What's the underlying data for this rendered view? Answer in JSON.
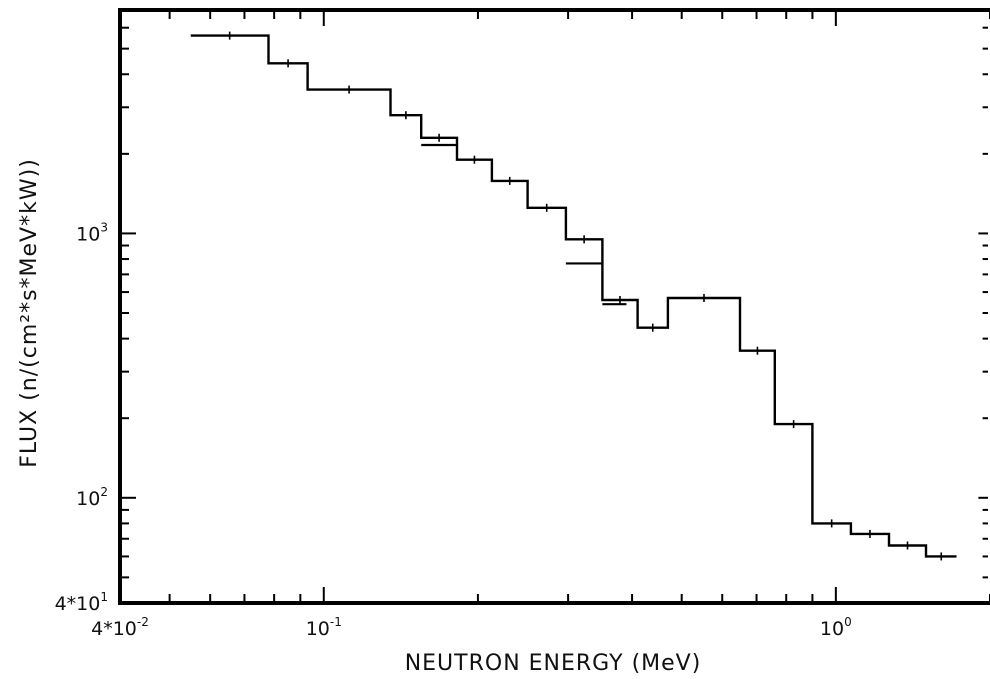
{
  "chart_data": {
    "type": "line",
    "title": "",
    "xlabel": "NEUTRON ENERGY (MeV)",
    "ylabel": "FLUX (n/(cm²*s*MeV*kW))",
    "xscale": "log",
    "yscale": "log",
    "xlim": [
      0.04,
      2.0
    ],
    "ylim": [
      40,
      7000
    ],
    "x_ticks": [
      {
        "value": 0.04,
        "label": "4*10",
        "exp": "-2"
      },
      {
        "value": 0.1,
        "label": "10",
        "exp": "-1"
      },
      {
        "value": 1.0,
        "label": "10",
        "exp": "0"
      }
    ],
    "y_ticks": [
      {
        "value": 40,
        "label": "4*10",
        "exp": "1"
      },
      {
        "value": 100,
        "label": "10",
        "exp": "2"
      },
      {
        "value": 1000,
        "label": "10",
        "exp": "3"
      }
    ],
    "grid": false,
    "series": [
      {
        "style": "step-histogram",
        "bins": [
          {
            "x0": 0.055,
            "x1": 0.078,
            "y": 5600
          },
          {
            "x0": 0.078,
            "x1": 0.093,
            "y": 4400
          },
          {
            "x0": 0.093,
            "x1": 0.135,
            "y": 3500
          },
          {
            "x0": 0.135,
            "x1": 0.155,
            "y": 2800
          },
          {
            "x0": 0.155,
            "x1": 0.182,
            "y": 2300
          },
          {
            "x0": 0.182,
            "x1": 0.213,
            "y": 1900
          },
          {
            "x0": 0.213,
            "x1": 0.25,
            "y": 1580
          },
          {
            "x0": 0.25,
            "x1": 0.297,
            "y": 1250
          },
          {
            "x0": 0.297,
            "x1": 0.35,
            "y": 950
          },
          {
            "x0": 0.35,
            "x1": 0.41,
            "y": 560
          },
          {
            "x0": 0.41,
            "x1": 0.47,
            "y": 440
          },
          {
            "x0": 0.47,
            "x1": 0.65,
            "y": 570
          },
          {
            "x0": 0.65,
            "x1": 0.76,
            "y": 360
          },
          {
            "x0": 0.76,
            "x1": 0.9,
            "y": 190
          },
          {
            "x0": 0.9,
            "x1": 1.07,
            "y": 80
          },
          {
            "x0": 1.07,
            "x1": 1.27,
            "y": 73
          },
          {
            "x0": 1.27,
            "x1": 1.5,
            "y": 66
          }
        ],
        "tail": {
          "x0": 1.5,
          "x1": 1.72,
          "y": 60
        }
      },
      {
        "style": "overlap-segments",
        "segments": [
          {
            "x0": 0.155,
            "x1": 0.182,
            "y": 2160
          },
          {
            "x0": 0.297,
            "x1": 0.35,
            "y": 770
          },
          {
            "x0": 0.35,
            "x1": 0.39,
            "y": 540
          }
        ]
      }
    ]
  }
}
